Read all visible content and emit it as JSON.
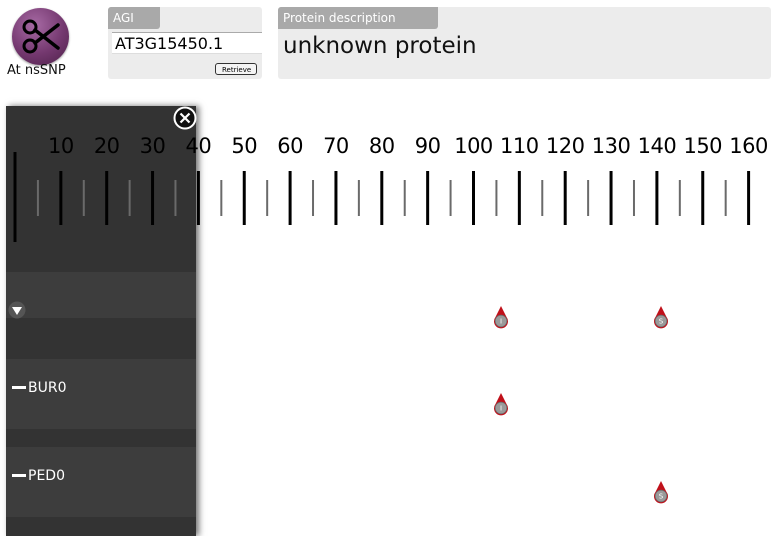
{
  "app": {
    "logo_label": "At nsSNP"
  },
  "agi": {
    "tag": "AGI",
    "value": "AT3G15450.1",
    "retrieve_label": "Retrieve"
  },
  "description": {
    "tag": "Protein description",
    "text": "unknown protein"
  },
  "ruler": {
    "labels": [
      "10",
      "20",
      "30",
      "40",
      "50",
      "60",
      "70",
      "80",
      "90",
      "100",
      "110",
      "120",
      "130",
      "140",
      "150",
      "160"
    ]
  },
  "tracks": [
    {
      "label": ""
    },
    {
      "label": "BUR0"
    },
    {
      "label": "PED0"
    }
  ],
  "snps": [
    {
      "track": 0,
      "position": 106,
      "letter": "I"
    },
    {
      "track": 0,
      "position": 141,
      "letter": "S"
    },
    {
      "track": 1,
      "position": 106,
      "letter": "I"
    },
    {
      "track": 2,
      "position": 141,
      "letter": "S"
    }
  ],
  "colors": {
    "panel": "#333333",
    "snp": "#c0101a",
    "snp_head": "#9a9a9a",
    "logo": "#74386f"
  },
  "icons": {
    "logo": "scissors-icon",
    "close": "close-circle-icon",
    "collapse": "triangle-down-icon",
    "track": "dash-icon"
  }
}
